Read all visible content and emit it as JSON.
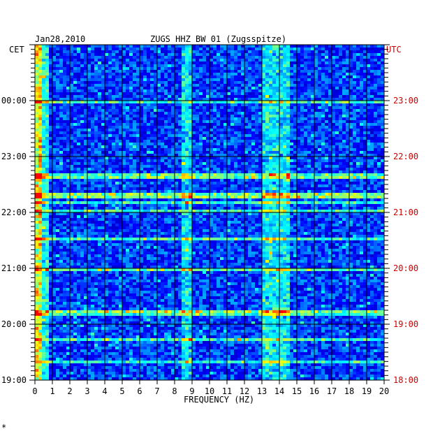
{
  "chart_data": {
    "type": "heatmap",
    "title": "ZUGS HHZ BW 01 (Zugsspitze)",
    "date": "Jan28,2010",
    "xlabel": "FREQUENCY (HZ)",
    "left_axis_label": "CET",
    "right_axis_label": "UTC",
    "x_ticks": [
      "0",
      "1",
      "2",
      "3",
      "4",
      "5",
      "6",
      "7",
      "8",
      "9",
      "10",
      "11",
      "12",
      "13",
      "14",
      "15",
      "16",
      "17",
      "18",
      "19",
      "20"
    ],
    "xlim": [
      0,
      20
    ],
    "cet_ticks": [
      "19:00",
      "20:00",
      "21:00",
      "22:00",
      "23:00",
      "00:00"
    ],
    "utc_ticks": [
      "18:00",
      "19:00",
      "20:00",
      "21:00",
      "22:00",
      "23:00"
    ],
    "time_range_utc": [
      "18:00",
      "24:00"
    ],
    "grid": true,
    "colors": {
      "background": "#0000b4",
      "cet_text": "#000000",
      "utc_text": "#cc0000",
      "grid": "#000000",
      "colormap": [
        "#000090",
        "#0000ff",
        "#00a0ff",
        "#00ffff",
        "#80ff80",
        "#ffff00",
        "#ff8000",
        "#ff0000"
      ]
    },
    "features": {
      "low_freq_energy_hz": [
        0,
        0.5
      ],
      "band_energy_hz": [
        [
          8.3,
          9.0
        ],
        [
          13.0,
          14.5
        ]
      ],
      "strong_event_cet": "22:20"
    }
  },
  "footer_mark": "*"
}
